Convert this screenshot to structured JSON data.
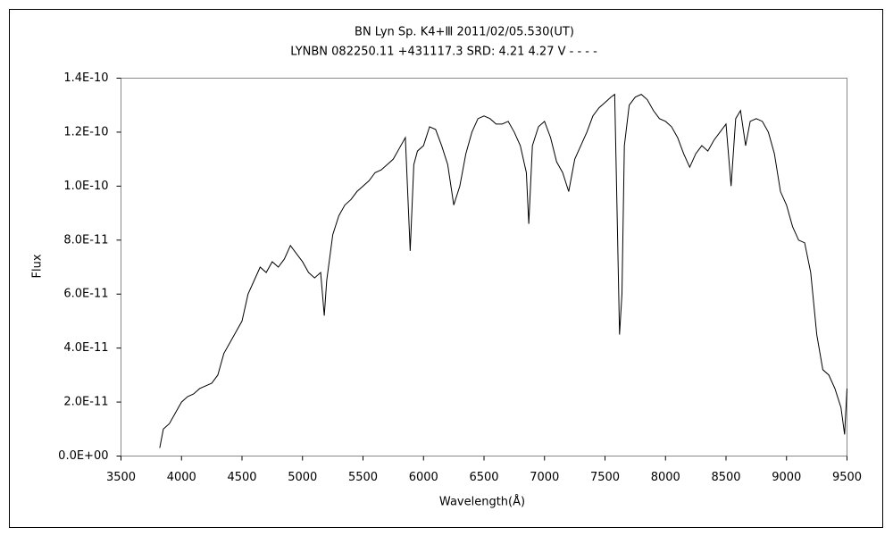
{
  "chart_data": {
    "type": "line",
    "title": "BN Lyn    Sp. K4+Ⅲ    2011/02/05.530(UT)",
    "subtitle": "LYNBN 082250.11 +431117.3 SRD: 4.21 4.27 V - - - -",
    "x_label": "Wavelength(Å)",
    "y_label": "Flux",
    "color": "#000000",
    "xlim": [
      3500,
      9500
    ],
    "xticks": [
      3500,
      4000,
      4500,
      5000,
      5500,
      6000,
      6500,
      7000,
      7500,
      8000,
      8500,
      9000,
      9500
    ],
    "ylim": [
      0,
      1.4e-10
    ],
    "yticks": [
      {
        "value": 0,
        "label": "0.0E+00"
      },
      {
        "value": 2e-11,
        "label": "2.0E-11"
      },
      {
        "value": 4e-11,
        "label": "4.0E-11"
      },
      {
        "value": 6e-11,
        "label": "6.0E-11"
      },
      {
        "value": 8e-11,
        "label": "8.0E-11"
      },
      {
        "value": 1e-10,
        "label": "1.0E-10"
      },
      {
        "value": 1.2e-10,
        "label": "1.2E-10"
      },
      {
        "value": 1.4e-10,
        "label": "1.4E-10"
      }
    ],
    "x": [
      3820,
      3850,
      3900,
      3950,
      4000,
      4050,
      4100,
      4150,
      4200,
      4250,
      4300,
      4350,
      4400,
      4450,
      4500,
      4550,
      4600,
      4650,
      4700,
      4750,
      4800,
      4850,
      4900,
      4950,
      5000,
      5050,
      5100,
      5150,
      5180,
      5200,
      5250,
      5300,
      5350,
      5400,
      5450,
      5500,
      5550,
      5600,
      5650,
      5700,
      5750,
      5800,
      5850,
      5890,
      5920,
      5950,
      6000,
      6050,
      6100,
      6150,
      6200,
      6250,
      6300,
      6350,
      6400,
      6450,
      6500,
      6550,
      6600,
      6650,
      6700,
      6750,
      6800,
      6850,
      6870,
      6900,
      6950,
      7000,
      7050,
      7100,
      7150,
      7200,
      7250,
      7300,
      7350,
      7400,
      7450,
      7500,
      7550,
      7580,
      7600,
      7620,
      7640,
      7660,
      7700,
      7750,
      7800,
      7850,
      7900,
      7950,
      8000,
      8050,
      8100,
      8150,
      8200,
      8250,
      8300,
      8350,
      8400,
      8450,
      8500,
      8542,
      8580,
      8620,
      8662,
      8700,
      8750,
      8800,
      8850,
      8900,
      8950,
      9000,
      9050,
      9100,
      9150,
      9200,
      9250,
      9300,
      9350,
      9400,
      9450,
      9480,
      9500
    ],
    "values": [
      3e-12,
      1e-11,
      1.2e-11,
      1.6e-11,
      2e-11,
      2.2e-11,
      2.3e-11,
      2.5e-11,
      2.6e-11,
      2.7e-11,
      3e-11,
      3.8e-11,
      4.2e-11,
      4.6e-11,
      5e-11,
      6e-11,
      6.5e-11,
      7e-11,
      6.8e-11,
      7.2e-11,
      7e-11,
      7.3e-11,
      7.8e-11,
      7.5e-11,
      7.2e-11,
      6.8e-11,
      6.6e-11,
      6.8e-11,
      5.2e-11,
      6.5e-11,
      8.2e-11,
      8.9e-11,
      9.3e-11,
      9.5e-11,
      9.8e-11,
      1e-10,
      1.02e-10,
      1.05e-10,
      1.06e-10,
      1.08e-10,
      1.1e-10,
      1.14e-10,
      1.18e-10,
      7.6e-11,
      1.08e-10,
      1.13e-10,
      1.15e-10,
      1.22e-10,
      1.21e-10,
      1.15e-10,
      1.08e-10,
      9.3e-11,
      1e-10,
      1.12e-10,
      1.2e-10,
      1.25e-10,
      1.26e-10,
      1.25e-10,
      1.23e-10,
      1.23e-10,
      1.24e-10,
      1.2e-10,
      1.15e-10,
      1.05e-10,
      8.6e-11,
      1.15e-10,
      1.22e-10,
      1.24e-10,
      1.18e-10,
      1.09e-10,
      1.05e-10,
      9.8e-11,
      1.1e-10,
      1.15e-10,
      1.2e-10,
      1.26e-10,
      1.29e-10,
      1.31e-10,
      1.33e-10,
      1.34e-10,
      9e-11,
      4.5e-11,
      6e-11,
      1.15e-10,
      1.3e-10,
      1.33e-10,
      1.34e-10,
      1.32e-10,
      1.28e-10,
      1.25e-10,
      1.24e-10,
      1.22e-10,
      1.18e-10,
      1.12e-10,
      1.07e-10,
      1.12e-10,
      1.15e-10,
      1.13e-10,
      1.17e-10,
      1.2e-10,
      1.23e-10,
      1e-10,
      1.25e-10,
      1.28e-10,
      1.15e-10,
      1.24e-10,
      1.25e-10,
      1.24e-10,
      1.2e-10,
      1.12e-10,
      9.8e-11,
      9.3e-11,
      8.5e-11,
      8e-11,
      7.9e-11,
      6.8e-11,
      4.5e-11,
      3.2e-11,
      3e-11,
      2.5e-11,
      1.8e-11,
      8e-12,
      2.5e-11
    ]
  }
}
